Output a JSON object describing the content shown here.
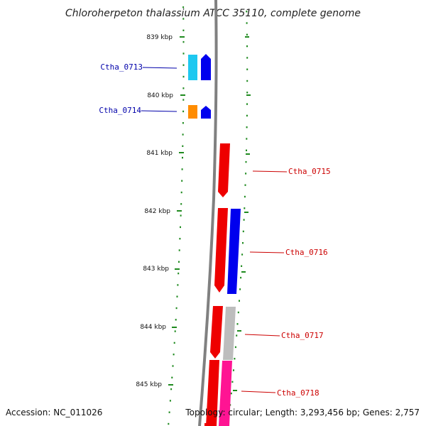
{
  "title": "Chloroherpeton thalassium ATCC 35110, complete genome",
  "scale_labels": [
    "839 kbp",
    "840 kbp",
    "841 kbp",
    "842 kbp",
    "843 kbp",
    "844 kbp",
    "845 kbp"
  ],
  "genes": [
    {
      "name": "Ctha_0713",
      "label_color": "#0000aa"
    },
    {
      "name": "Ctha_0714",
      "label_color": "#0000aa"
    },
    {
      "name": "Ctha_0715",
      "label_color": "#cc0000"
    },
    {
      "name": "Ctha_0716",
      "label_color": "#cc0000"
    },
    {
      "name": "Ctha_0717",
      "label_color": "#cc0000"
    },
    {
      "name": "Ctha_0718",
      "label_color": "#cc0000"
    }
  ],
  "colors": {
    "backbone": "#808080",
    "tick": "#1f8a1f",
    "red": "#ee0000",
    "blue": "#0000ee",
    "cyan": "#1ec8f0",
    "orange": "#ff8c00",
    "grey": "#bdbdbd",
    "magenta": "#ff1493"
  },
  "footer": {
    "accession": "Accession: NC_011026",
    "topology": "Topology: circular; Length: 3,293,456 bp; Genes: 2,757"
  }
}
